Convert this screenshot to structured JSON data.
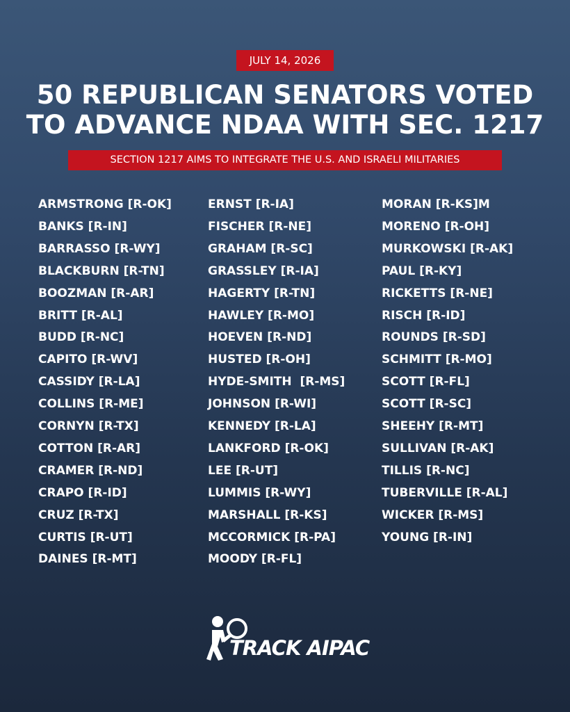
{
  "header": {
    "date": "JULY 14, 2026",
    "title_lines": [
      "50 REPUBLICAN SENATORS VOTED",
      "TO ADVANCE NDAA WITH SEC. 1217"
    ],
    "subtitle": "SECTION 1217 AIMS TO INTEGRATE THE U.S. AND ISRAELI MILITARIES"
  },
  "columns": [
    [
      "ARMSTRONG [R-OK]",
      "BANKS [R-IN]",
      "BARRASSO [R-WY]",
      "BLACKBURN [R-TN]",
      "BOOZMAN [R-AR]",
      "BRITT [R-AL]",
      "BUDD [R-NC]",
      "CAPITO [R-WV]",
      "CASSIDY [R-LA]",
      "COLLINS [R-ME]",
      "CORNYN [R-TX]",
      "COTTON [R-AR]",
      "CRAMER [R-ND]",
      "CRAPO [R-ID]",
      "CRUZ [R-TX]",
      "CURTIS [R-UT]",
      "DAINES [R-MT]"
    ],
    [
      "ERNST [R-IA]",
      "FISCHER [R-NE]",
      "GRAHAM [R-SC]",
      "GRASSLEY [R-IA]",
      "HAGERTY [R-TN]",
      "HAWLEY [R-MO]",
      "HOEVEN [R-ND]",
      "HUSTED [R-OH]",
      "HYDE-SMITH  [R-MS]",
      "JOHNSON [R-WI]",
      "KENNEDY [R-LA]",
      "LANKFORD [R-OK]",
      "LEE [R-UT]",
      "LUMMIS [R-WY]",
      "MARSHALL [R-KS]",
      "MCCORMICK [R-PA]",
      "MOODY [R-FL]"
    ],
    [
      "MORAN [R-KS]M",
      "MORENO [R-OH]",
      "MURKOWSKI [R-AK]",
      "PAUL [R-KY]",
      "RICKETTS [R-NE]",
      "RISCH [R-ID]",
      "ROUNDS [R-SD]",
      "SCHMITT [R-MO]",
      "SCOTT [R-FL]",
      "SCOTT [R-SC]",
      "SHEEHY [R-MT]",
      "SULLIVAN [R-AK]",
      "TILLIS [R-NC]",
      "TUBERVILLE [R-AL]",
      "WICKER [R-MS]",
      "YOUNG [R-IN]"
    ]
  ],
  "footer": {
    "logo": "TRACK AIPAC"
  }
}
